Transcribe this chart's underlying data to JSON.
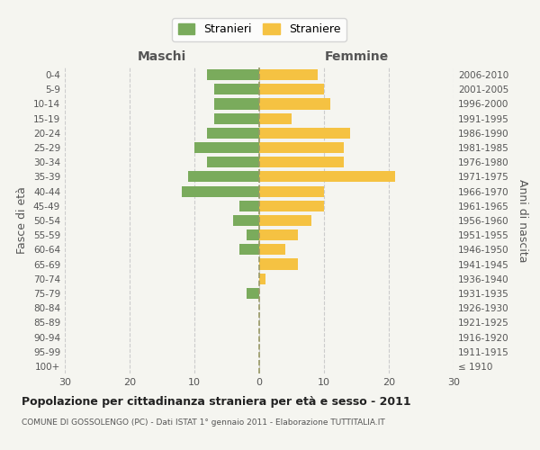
{
  "age_groups": [
    "100+",
    "95-99",
    "90-94",
    "85-89",
    "80-84",
    "75-79",
    "70-74",
    "65-69",
    "60-64",
    "55-59",
    "50-54",
    "45-49",
    "40-44",
    "35-39",
    "30-34",
    "25-29",
    "20-24",
    "15-19",
    "10-14",
    "5-9",
    "0-4"
  ],
  "birth_years": [
    "≤ 1910",
    "1911-1915",
    "1916-1920",
    "1921-1925",
    "1926-1930",
    "1931-1935",
    "1936-1940",
    "1941-1945",
    "1946-1950",
    "1951-1955",
    "1956-1960",
    "1961-1965",
    "1966-1970",
    "1971-1975",
    "1976-1980",
    "1981-1985",
    "1986-1990",
    "1991-1995",
    "1996-2000",
    "2001-2005",
    "2006-2010"
  ],
  "males": [
    0,
    0,
    0,
    0,
    0,
    2,
    0,
    0,
    3,
    2,
    4,
    3,
    12,
    11,
    8,
    10,
    8,
    7,
    7,
    7,
    8
  ],
  "females": [
    0,
    0,
    0,
    0,
    0,
    0,
    1,
    6,
    4,
    6,
    8,
    10,
    10,
    21,
    13,
    13,
    14,
    5,
    11,
    10,
    9
  ],
  "male_color": "#7aab5c",
  "female_color": "#f5c242",
  "background_color": "#f5f5f0",
  "grid_color": "#cccccc",
  "center_line_color": "#999966",
  "xlim": 30,
  "title": "Popolazione per cittadinanza straniera per età e sesso - 2011",
  "subtitle": "COMUNE DI GOSSOLENGO (PC) - Dati ISTAT 1° gennaio 2011 - Elaborazione TUTTITALIA.IT",
  "xlabel_left": "Maschi",
  "xlabel_right": "Femmine",
  "ylabel_left": "Fasce di età",
  "ylabel_right": "Anni di nascita",
  "legend_males": "Stranieri",
  "legend_females": "Straniere"
}
